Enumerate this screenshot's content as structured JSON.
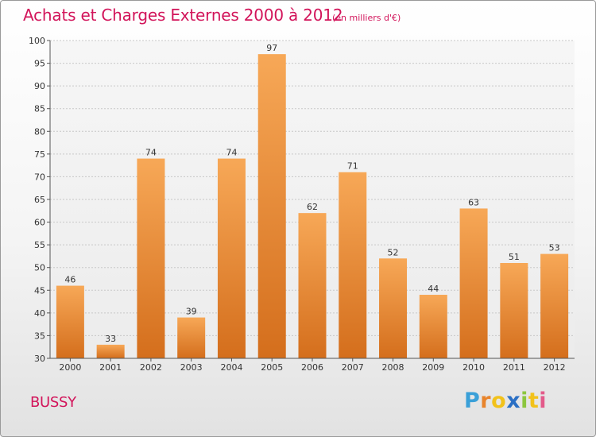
{
  "header": {
    "title": "Achats et Charges Externes 2000 à 2012",
    "unit": "(en milliers d'€)"
  },
  "place": "BUSSY",
  "logo": {
    "text": "Proxiti",
    "letters": [
      "P",
      "r",
      "o",
      "x",
      "i",
      "t",
      "i"
    ],
    "colors": [
      "#3aa0d8",
      "#e8842c",
      "#f2c21b",
      "#2a6fc4",
      "#8cc63f",
      "#f2c21b",
      "#e35a8a"
    ]
  },
  "chart_data": {
    "type": "bar",
    "title": "Achats et Charges Externes 2000 à 2012",
    "categories": [
      "2000",
      "2001",
      "2002",
      "2003",
      "2004",
      "2005",
      "2006",
      "2007",
      "2008",
      "2009",
      "2010",
      "2011",
      "2012"
    ],
    "values": [
      46,
      33,
      74,
      39,
      74,
      97,
      62,
      71,
      52,
      44,
      63,
      51,
      53
    ],
    "ylim": [
      30,
      100
    ],
    "yticks": [
      30,
      35,
      40,
      45,
      50,
      55,
      60,
      65,
      70,
      75,
      80,
      85,
      90,
      95,
      100
    ],
    "xlabel": "",
    "ylabel": "",
    "grid": "horizontal",
    "bar_color_top": "#f7a857",
    "bar_color_bottom": "#d46e1c"
  }
}
